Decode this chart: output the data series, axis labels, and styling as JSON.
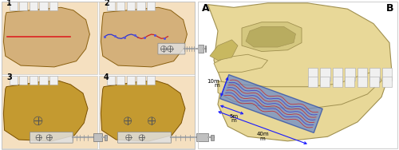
{
  "fig_width": 5.0,
  "fig_height": 1.88,
  "dpi": 100,
  "bg_color": "#ffffff",
  "label_A": "A",
  "label_B": "B",
  "label_fontsize": 9,
  "label_fontweight": "bold",
  "nums": [
    "1",
    "2",
    "3",
    "4"
  ],
  "num_fontsize": 7,
  "dim_10mm": "10m\nm",
  "dim_5mm": "5m\nm",
  "dim_40mm": "40m\nm",
  "dim_fontsize": 5.0,
  "arrow_color": "#1a1aff",
  "panel_bg": "#f5e0c0",
  "bone_color_12": "#d4b07a",
  "bone_color_34": "#c49a30",
  "bone_edge": "#8a6010",
  "skull_color": "#e8d898",
  "skull_edge": "#a09050",
  "tooth_color": "#f0f0f0",
  "tooth_edge": "#aaaaaa",
  "sample_fill": "#6688cc",
  "sample_edge": "#2244aa",
  "sample_alpha": 0.7,
  "red_line_color": "#dd2222",
  "suture_blue": "#3333cc",
  "suture_red": "#cc2222",
  "distractor_color": "#c0c0c0",
  "distractor_edge": "#606060"
}
